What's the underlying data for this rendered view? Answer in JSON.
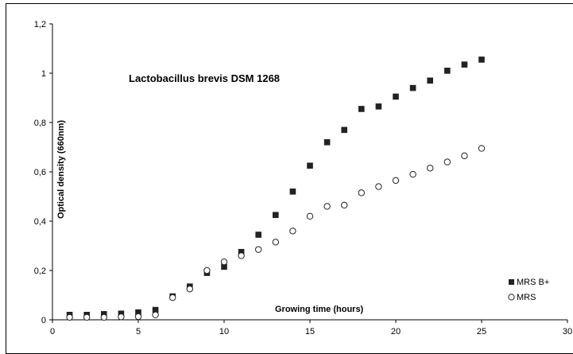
{
  "chart_data": {
    "type": "scatter",
    "title": "Lactobacillus brevis DSM 1268",
    "xlabel": "Growing time (hours)",
    "ylabel": "Optical density (660nm)",
    "xlim": [
      0,
      30
    ],
    "ylim": [
      0,
      1.2
    ],
    "x_ticks": [
      "0",
      "5",
      "10",
      "15",
      "20",
      "25",
      "30"
    ],
    "y_ticks": [
      "0",
      "0,2",
      "0,4",
      "0,6",
      "0,8",
      "1",
      "1,2"
    ],
    "grid": false,
    "legend_position": "bottom-right",
    "series": [
      {
        "name": "MRS B+",
        "marker": "filled-square",
        "color": "#222222",
        "x": [
          1,
          2,
          3,
          4,
          5,
          6,
          7,
          8,
          9,
          10,
          11,
          12,
          13,
          14,
          15,
          16,
          17,
          18,
          19,
          20,
          21,
          22,
          23,
          24,
          25
        ],
        "y": [
          0.02,
          0.02,
          0.023,
          0.025,
          0.03,
          0.04,
          0.095,
          0.135,
          0.19,
          0.215,
          0.275,
          0.345,
          0.425,
          0.52,
          0.625,
          0.72,
          0.77,
          0.855,
          0.865,
          0.905,
          0.94,
          0.97,
          1.01,
          1.035,
          1.055
        ]
      },
      {
        "name": "MRS",
        "marker": "open-circle",
        "color": "#222222",
        "x": [
          1,
          2,
          3,
          4,
          5,
          6,
          7,
          8,
          9,
          10,
          11,
          12,
          13,
          14,
          15,
          16,
          17,
          18,
          19,
          20,
          21,
          22,
          23,
          24,
          25
        ],
        "y": [
          0.01,
          0.01,
          0.01,
          0.012,
          0.013,
          0.02,
          0.09,
          0.125,
          0.2,
          0.235,
          0.26,
          0.285,
          0.315,
          0.36,
          0.42,
          0.46,
          0.465,
          0.515,
          0.54,
          0.565,
          0.59,
          0.615,
          0.64,
          0.665,
          0.695
        ]
      }
    ]
  }
}
